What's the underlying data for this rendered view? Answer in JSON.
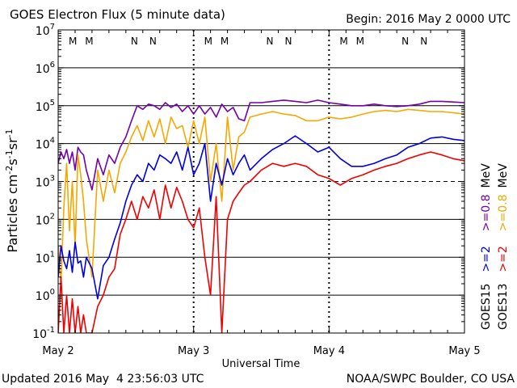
{
  "chart_data": {
    "type": "line",
    "title": "GOES Electron Flux (5 minute data)",
    "begin_label": "Begin: 2016 May 2 0000 UTC",
    "xlabel": "Universal Time",
    "ylabel": "Particles cm^-2 s^-1 sr^-1",
    "y_scale": "log",
    "ylim": [
      0.1,
      10000000
    ],
    "y_ticks": [
      {
        "value": 0.1,
        "base": "10",
        "exp": "-1"
      },
      {
        "value": 1,
        "base": "10",
        "exp": "0"
      },
      {
        "value": 10,
        "base": "10",
        "exp": "1"
      },
      {
        "value": 100,
        "base": "10",
        "exp": "2"
      },
      {
        "value": 1000,
        "base": "10",
        "exp": "3"
      },
      {
        "value": 10000,
        "base": "10",
        "exp": "4"
      },
      {
        "value": 100000,
        "base": "10",
        "exp": "5"
      },
      {
        "value": 1000000,
        "base": "10",
        "exp": "6"
      },
      {
        "value": 10000000,
        "base": "10",
        "exp": "7"
      }
    ],
    "xlim": [
      0,
      72
    ],
    "x_ticks": [
      {
        "hour": 0,
        "label": "May 2"
      },
      {
        "hour": 24,
        "label": "May 3"
      },
      {
        "hour": 48,
        "label": "May 4"
      },
      {
        "hour": 72,
        "label": "May 5"
      }
    ],
    "threshold": 1000,
    "mn_markers": [
      {
        "hour": 2.6,
        "text": "M",
        "color": "#e00000"
      },
      {
        "hour": 5.5,
        "text": "M",
        "color": "#0000dd"
      },
      {
        "hour": 13.5,
        "text": "N",
        "color": "#e00000"
      },
      {
        "hour": 16.8,
        "text": "N",
        "color": "#0000dd"
      },
      {
        "hour": 26.6,
        "text": "M",
        "color": "#e00000"
      },
      {
        "hour": 29.5,
        "text": "M",
        "color": "#0000dd"
      },
      {
        "hour": 37.5,
        "text": "N",
        "color": "#e00000"
      },
      {
        "hour": 40.8,
        "text": "N",
        "color": "#0000dd"
      },
      {
        "hour": 50.6,
        "text": "M",
        "color": "#e00000"
      },
      {
        "hour": 53.5,
        "text": "M",
        "color": "#0000dd"
      },
      {
        "hour": 61.5,
        "text": "N",
        "color": "#e00000"
      },
      {
        "hour": 64.8,
        "text": "N",
        "color": "#0000dd"
      }
    ],
    "series": [
      {
        "name": "GOES15 >=0.8 MeV",
        "color": "#7300a8",
        "x": [
          0,
          0.5,
          1,
          1.5,
          2,
          2.5,
          3,
          3.5,
          4,
          4.5,
          5,
          6,
          7,
          8,
          9,
          10,
          11,
          12,
          13,
          14,
          15,
          16,
          17,
          18,
          19,
          20,
          21,
          22,
          23,
          24,
          25,
          26,
          27,
          28,
          29,
          30,
          31,
          32,
          33,
          34,
          36,
          38,
          40,
          42,
          44,
          46,
          48,
          50,
          52,
          54,
          56,
          58,
          60,
          62,
          64,
          66,
          68,
          70,
          72
        ],
        "y": [
          3000,
          6000,
          4000,
          7000,
          3000,
          6000,
          2000,
          8000,
          6000,
          5000,
          2000,
          600,
          4000,
          1500,
          5000,
          3000,
          8000,
          15000,
          40000,
          100000,
          80000,
          110000,
          100000,
          80000,
          120000,
          90000,
          110000,
          70000,
          100000,
          60000,
          100000,
          60000,
          90000,
          50000,
          110000,
          70000,
          90000,
          45000,
          40000,
          120000,
          120000,
          130000,
          140000,
          130000,
          120000,
          140000,
          120000,
          110000,
          100000,
          100000,
          110000,
          100000,
          95000,
          100000,
          110000,
          130000,
          130000,
          125000,
          120000
        ]
      },
      {
        "name": "GOES13 >=0.8 MeV",
        "color": "#f5a800",
        "x": [
          0,
          0.5,
          1,
          1.5,
          2,
          2.5,
          3,
          3.5,
          4,
          4.5,
          5,
          6,
          7,
          8,
          9,
          10,
          11,
          12,
          13,
          14,
          15,
          16,
          17,
          18,
          19,
          20,
          21,
          22,
          23,
          24,
          25,
          26,
          27,
          28,
          29,
          30,
          31,
          32,
          33,
          34,
          36,
          38,
          40,
          42,
          44,
          46,
          48,
          50,
          52,
          54,
          56,
          58,
          60,
          62,
          64,
          66,
          68,
          70,
          72
        ],
        "y": [
          20,
          2,
          200,
          3000,
          50,
          1000,
          20,
          5000,
          1500,
          300,
          30,
          3,
          2000,
          300,
          2000,
          500,
          3000,
          6000,
          15000,
          30000,
          12000,
          40000,
          15000,
          45000,
          10000,
          50000,
          25000,
          30000,
          8000,
          40000,
          10000,
          50000,
          1000,
          10000,
          300,
          50000,
          2000,
          15000,
          20000,
          50000,
          60000,
          70000,
          60000,
          55000,
          40000,
          40000,
          50000,
          45000,
          50000,
          60000,
          70000,
          75000,
          70000,
          80000,
          75000,
          70000,
          70000,
          65000,
          60000
        ]
      },
      {
        "name": "GOES15 >=2 MeV",
        "color": "#0000e0",
        "x": [
          0,
          0.5,
          1,
          1.5,
          2,
          2.5,
          3,
          3.5,
          4,
          4.5,
          5,
          6,
          7,
          8,
          9,
          10,
          11,
          12,
          13,
          14,
          15,
          16,
          17,
          18,
          19,
          20,
          21,
          22,
          23,
          24,
          25,
          26,
          27,
          28,
          29,
          30,
          31,
          32,
          33,
          34,
          36,
          38,
          40,
          42,
          44,
          46,
          48,
          50,
          52,
          54,
          56,
          58,
          60,
          62,
          64,
          66,
          68,
          70,
          72
        ],
        "y": [
          3,
          20,
          8,
          5,
          15,
          4,
          25,
          7,
          8,
          3,
          10,
          5,
          0.8,
          6,
          10,
          30,
          80,
          300,
          800,
          1500,
          1000,
          3000,
          2000,
          5000,
          4000,
          3000,
          6000,
          2000,
          8000,
          1500,
          3000,
          10000,
          300,
          3000,
          800,
          4000,
          1500,
          3000,
          5000,
          2000,
          4000,
          7000,
          10000,
          16000,
          10000,
          6000,
          8000,
          4000,
          2500,
          2500,
          3000,
          4000,
          5000,
          8000,
          10000,
          14000,
          15000,
          13000,
          12000
        ]
      },
      {
        "name": "GOES13 >=2 MeV",
        "color": "#f00000",
        "x": [
          0,
          0.5,
          1,
          1.5,
          2,
          2.5,
          3,
          3.5,
          4,
          4.5,
          5,
          6,
          7,
          8,
          9,
          10,
          11,
          12,
          13,
          14,
          15,
          16,
          17,
          18,
          19,
          20,
          21,
          22,
          23,
          24,
          25,
          26,
          27,
          28,
          29,
          30,
          31,
          32,
          33,
          34,
          36,
          38,
          40,
          42,
          44,
          46,
          48,
          50,
          52,
          54,
          56,
          58,
          60,
          62,
          64,
          66,
          68,
          70,
          72
        ],
        "y": [
          0.1,
          3,
          0.1,
          1,
          0.1,
          0.8,
          0.1,
          0.5,
          0.1,
          0.3,
          0.1,
          0.1,
          0.5,
          1,
          3,
          5,
          40,
          100,
          300,
          100,
          400,
          200,
          600,
          100,
          800,
          200,
          700,
          300,
          100,
          60,
          200,
          10,
          1,
          400,
          0.1,
          100,
          300,
          500,
          800,
          1000,
          2000,
          3000,
          2500,
          3000,
          2500,
          1500,
          1200,
          800,
          1200,
          1500,
          2000,
          2500,
          3000,
          4000,
          5000,
          6000,
          5000,
          4000,
          3500
        ]
      }
    ],
    "right_legend": {
      "goes15_label": "GOES15",
      "goes15_ch2": ">=2",
      "goes15_ch08": ">=0.8",
      "goes13_label": "GOES13",
      "goes13_ch2": ">=2",
      "goes13_ch08": ">=0.8",
      "mev": "MeV"
    },
    "footer_left": "Updated 2016 May  4 23:56:03 UTC",
    "footer_right": "NOAA/SWPC Boulder, CO USA"
  }
}
